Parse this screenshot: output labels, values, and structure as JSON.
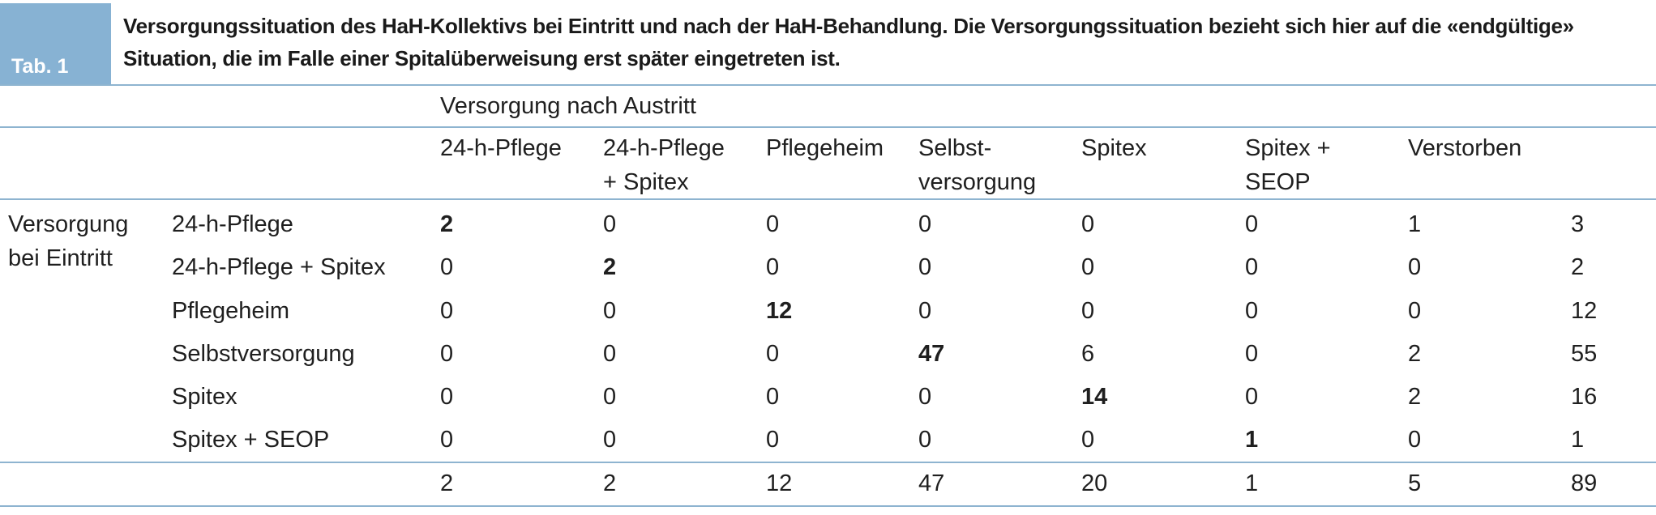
{
  "tab_label": "Tab. 1",
  "caption": "Versorgungssituation des HaH-Kollektivs bei Eintritt und nach der HaH-Behandlung. Die Versorgungssituation bezieht sich hier auf die «endgültige» Situation, die im Falle einer Spitalüberweisung erst später eingetreten ist.",
  "column_group_label": "Versorgung nach Austritt",
  "row_group_label": [
    "Versorgung",
    "bei Eintritt"
  ],
  "columns": [
    [
      "24-h-Pflege"
    ],
    [
      "24-h-Pflege",
      "+ Spitex"
    ],
    [
      "Pflegeheim"
    ],
    [
      "Selbst-",
      "versorgung"
    ],
    [
      "Spitex"
    ],
    [
      "Spitex +",
      "SEOP"
    ],
    [
      "Verstorben"
    ]
  ],
  "rows": [
    {
      "label": "24-h-Pflege",
      "values": [
        "2",
        "0",
        "0",
        "0",
        "0",
        "0",
        "1"
      ],
      "total": "3",
      "bold_index": 0
    },
    {
      "label": "24-h-Pflege + Spitex",
      "values": [
        "0",
        "2",
        "0",
        "0",
        "0",
        "0",
        "0"
      ],
      "total": "2",
      "bold_index": 1
    },
    {
      "label": "Pflegeheim",
      "values": [
        "0",
        "0",
        "12",
        "0",
        "0",
        "0",
        "0"
      ],
      "total": "12",
      "bold_index": 2
    },
    {
      "label": "Selbstversorgung",
      "values": [
        "0",
        "0",
        "0",
        "47",
        "6",
        "0",
        "2"
      ],
      "total": "55",
      "bold_index": 3
    },
    {
      "label": "Spitex",
      "values": [
        "0",
        "0",
        "0",
        "0",
        "14",
        "0",
        "2"
      ],
      "total": "16",
      "bold_index": 4
    },
    {
      "label": "Spitex + SEOP",
      "values": [
        "0",
        "0",
        "0",
        "0",
        "0",
        "1",
        "0"
      ],
      "total": "1",
      "bold_index": 5
    }
  ],
  "totals": {
    "values": [
      "2",
      "2",
      "12",
      "47",
      "20",
      "1",
      "5"
    ],
    "grand_total": "89"
  }
}
